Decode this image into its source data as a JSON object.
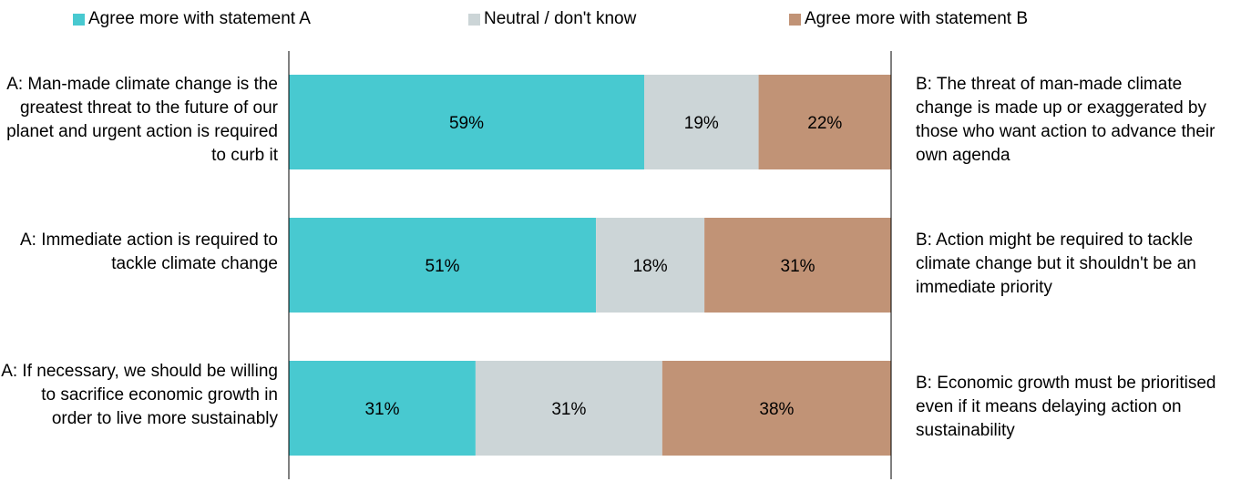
{
  "legend": {
    "a": "Agree more with statement A",
    "neutral": "Neutral / don't know",
    "b": "Agree more with statement B"
  },
  "colors": {
    "a": "#48c9d0",
    "neutral": "#ccd5d7",
    "b": "#c19376",
    "axis": "#000000"
  },
  "chart_data": {
    "type": "bar",
    "orientation": "horizontal",
    "stacked": true,
    "xlim": [
      0,
      100
    ],
    "categories": [
      "A: Man-made climate change is the greatest threat to the future of our planet and urgent action is required to curb it",
      "A: Immediate action is required to tackle climate change",
      "A: If necessary, we should be willing to sacrifice economic growth in order to live more sustainably"
    ],
    "right_labels": [
      "B: The threat of man-made climate change is made up or exaggerated by those who want action to advance their own agenda",
      "B: Action might be required to tackle climate change but it shouldn't be an immediate priority",
      "B: Economic growth must be prioritised even if it means delaying action on sustainability"
    ],
    "series": [
      {
        "name": "Agree more with statement A",
        "values": [
          59,
          51,
          31
        ],
        "labels": [
          "59%",
          "51%",
          "31%"
        ]
      },
      {
        "name": "Neutral / don't know",
        "values": [
          19,
          18,
          31
        ],
        "labels": [
          "19%",
          "18%",
          "31%"
        ]
      },
      {
        "name": "Agree more with statement B",
        "values": [
          22,
          31,
          38
        ],
        "labels": [
          "22%",
          "31%",
          "38%"
        ]
      }
    ]
  }
}
